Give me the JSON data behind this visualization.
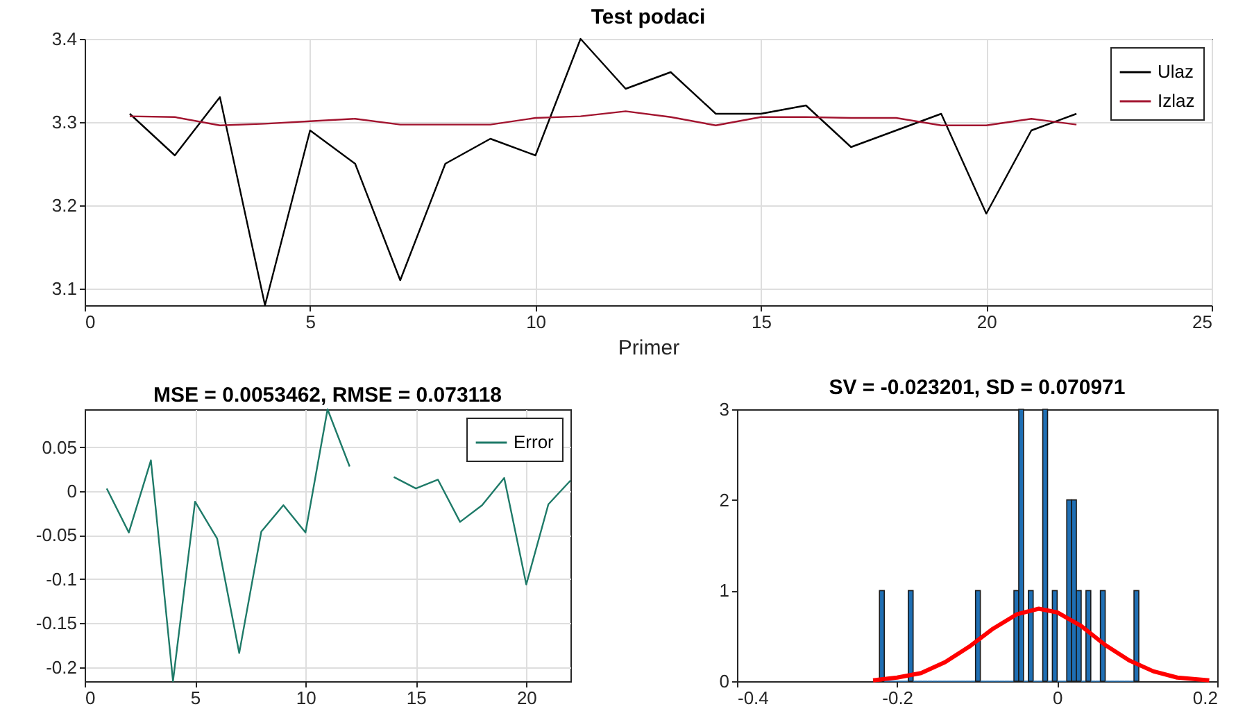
{
  "chart_data": [
    {
      "type": "line",
      "title": "Test podaci",
      "xlabel": "Primer",
      "x": [
        1,
        2,
        3,
        4,
        5,
        6,
        7,
        8,
        9,
        10,
        11,
        12,
        13,
        14,
        15,
        16,
        17,
        18,
        19,
        20,
        21,
        22
      ],
      "xlim": [
        0,
        25
      ],
      "xticks": [
        0,
        5,
        10,
        15,
        20,
        25
      ],
      "ylim": [
        3.08,
        3.4
      ],
      "yticks": [
        3.1,
        3.2,
        3.3,
        3.4
      ],
      "grid": true,
      "legend": "top right",
      "series": [
        {
          "name": "Ulaz",
          "color": "#000000",
          "values": [
            3.31,
            3.26,
            3.33,
            3.08,
            3.29,
            3.25,
            3.11,
            3.25,
            3.28,
            3.26,
            3.4,
            3.34,
            3.36,
            3.31,
            3.31,
            3.32,
            3.27,
            3.29,
            3.31,
            3.19,
            3.29,
            3.31
          ]
        },
        {
          "name": "Izlaz",
          "color": "#a2142f",
          "values": [
            3.307,
            3.306,
            3.296,
            3.298,
            3.301,
            3.304,
            3.297,
            3.297,
            3.297,
            3.305,
            3.307,
            3.313,
            3.306,
            3.296,
            3.306,
            3.306,
            3.305,
            3.305,
            3.296,
            3.296,
            3.304,
            3.297
          ]
        }
      ]
    },
    {
      "type": "line",
      "title": "MSE = 0.0053462, RMSE = 0.073118",
      "x": [
        1,
        2,
        3,
        4,
        5,
        6,
        7,
        8,
        9,
        10,
        11,
        12,
        13,
        14,
        15,
        16,
        17,
        18,
        19,
        20,
        21,
        22
      ],
      "xlim": [
        0,
        22
      ],
      "xticks": [
        0,
        5,
        10,
        15,
        20
      ],
      "ylim": [
        -0.216,
        0.093
      ],
      "yticks": [
        -0.2,
        -0.15,
        -0.1,
        -0.05,
        0,
        0.05
      ],
      "grid": true,
      "legend": "top right",
      "series": [
        {
          "name": "Error",
          "color": "#1e7a68",
          "values": [
            0.003,
            -0.047,
            0.035,
            -0.216,
            -0.012,
            -0.054,
            -0.184,
            -0.046,
            -0.016,
            -0.047,
            0.093,
            0.028,
            null,
            0.016,
            0.003,
            0.013,
            -0.035,
            -0.016,
            0.015,
            -0.106,
            -0.015,
            0.012
          ]
        }
      ]
    },
    {
      "type": "histogram",
      "title": "SV = -0.023201, SD = 0.070971",
      "xlim": [
        -0.4,
        0.2
      ],
      "xticks": [
        -0.4,
        -0.2,
        0,
        0.2
      ],
      "ylim": [
        0,
        3
      ],
      "yticks": [
        0,
        1,
        2,
        3
      ],
      "color": "#1f6fb4",
      "bins": [
        -0.222,
        -0.216,
        -0.21,
        -0.204,
        -0.198,
        -0.192,
        -0.186,
        -0.18,
        -0.174,
        -0.168,
        -0.162,
        -0.156,
        -0.15,
        -0.144,
        -0.138,
        -0.132,
        -0.126,
        -0.12,
        -0.114,
        -0.108,
        -0.102,
        -0.096,
        -0.09,
        -0.084,
        -0.078,
        -0.072,
        -0.066,
        -0.06,
        -0.054,
        -0.048,
        -0.042,
        -0.036,
        -0.03,
        -0.024,
        -0.018,
        -0.012,
        -0.006,
        0,
        0.006,
        0.012,
        0.018,
        0.024,
        0.03,
        0.036,
        0.042,
        0.048,
        0.054,
        0.06,
        0.066,
        0.072,
        0.078,
        0.084,
        0.09,
        0.096,
        0.102
      ],
      "values": [
        1,
        0,
        0,
        0,
        0,
        0,
        1,
        0,
        0,
        0,
        0,
        0,
        0,
        0,
        0,
        0,
        0,
        0,
        0,
        0,
        1,
        0,
        0,
        0,
        0,
        0,
        0,
        0,
        1,
        3,
        0,
        1,
        0,
        0,
        3,
        0,
        1,
        0,
        0,
        2,
        2,
        1,
        0,
        1,
        0,
        0,
        1,
        0,
        0,
        0,
        0,
        0,
        0,
        1
      ],
      "series": [
        {
          "type": "line",
          "color": "#ff0000",
          "x": [
            -0.23,
            -0.2,
            -0.17,
            -0.14,
            -0.11,
            -0.08,
            -0.05,
            -0.023,
            0,
            0.03,
            0.06,
            0.09,
            0.12,
            0.15,
            0.19
          ],
          "values": [
            0.01,
            0.04,
            0.09,
            0.21,
            0.38,
            0.58,
            0.74,
            0.8,
            0.76,
            0.61,
            0.4,
            0.23,
            0.11,
            0.04,
            0.01
          ]
        }
      ]
    }
  ]
}
